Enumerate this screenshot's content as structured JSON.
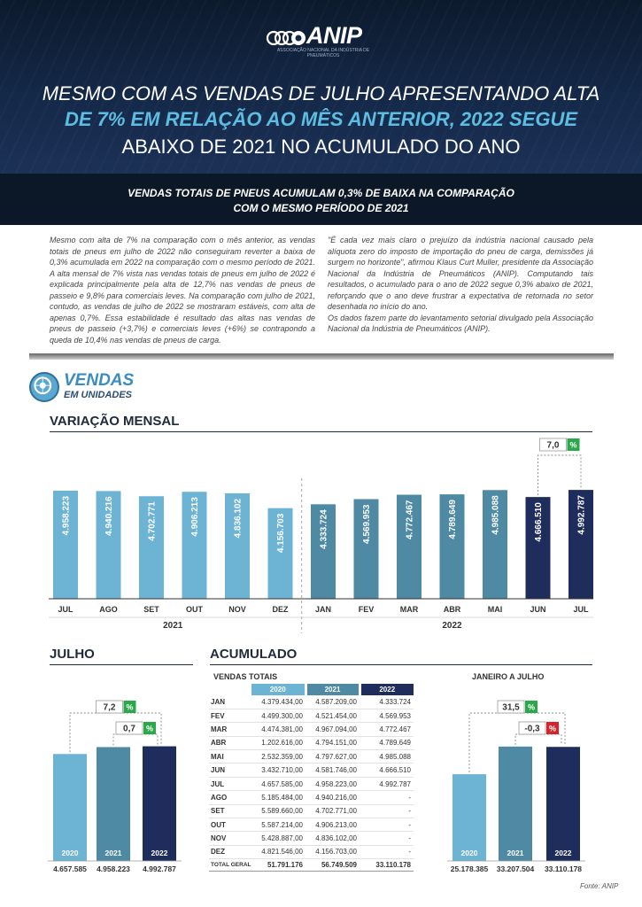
{
  "header": {
    "logo_text": "ANIP",
    "logo_tagline": "ASSOCIAÇÃO NACIONAL DA INDÚSTRIA DE PNEUMÁTICOS",
    "headline_1": "MESMO COM AS VENDAS DE JULHO APRESENTANDO ALTA",
    "headline_2": "DE 7% EM RELAÇÃO AO MÊS ANTERIOR, 2022 SEGUE",
    "headline_3": "ABAIXO DE 2021 NO ACUMULADO DO ANO",
    "subhead_1": "VENDAS TOTAIS DE PNEUS ACUMULAM 0,3% DE BAIXA NA COMPARAÇÃO",
    "subhead_2": "COM O MESMO PERÍODO DE 2021"
  },
  "body": {
    "left_column": "Mesmo com alta de 7% na comparação com o mês anterior, as vendas totais de pneus em julho de 2022 não conseguiram reverter a baixa de 0,3% acumulada em 2022 na comparação com o mesmo período de 2021. A alta mensal de 7% vista nas vendas totais de pneus em julho de 2022 é explicada principalmente pela alta de 12,7% nas vendas de pneus de passeio e 9,8% para comerciais leves. Na comparação com julho de 2021, contudo, as vendas de julho de 2022 se mostraram estáveis, com alta de apenas 0,7%. Essa estabilidade é resultado das altas nas vendas de pneus de passeio (+3,7%) e comerciais leves (+6%) se contrapondo a queda de 10,4% nas vendas de pneus de carga.",
    "right_column_1": "\"É cada vez mais claro o prejuízo da indústria nacional causado pela alíquota zero do imposto de importação do pneu de carga, demissões já surgem no horizonte\", afirmou Klaus Curt Muller, presidente da Associação Nacional da Indústria de Pneumáticos (ANIP). Computando tais resultados, o acumulado para o ano de 2022 segue 0,3% abaixo de 2021, reforçando que o ano deve frustrar a expectativa de retomada no setor desenhada no início do ano.",
    "right_column_2": "Os dados fazem parte do levantamento setorial divulgado pela Associação Nacional da Indústria de Pneumáticos (ANIP)."
  },
  "section": {
    "title": "VENDAS",
    "subtitle": "EM UNIDADES",
    "badge_icon": "tire-icon"
  },
  "colors": {
    "c2020": "#6db3d3",
    "c2021": "#4e8aa3",
    "c2022": "#1f2d5c",
    "positive": "#2aa84a",
    "negative": "#d6242a"
  },
  "chart_data": [
    {
      "type": "bar",
      "title": "VARIAÇÃO MENSAL",
      "categories": [
        "JUL",
        "AGO",
        "SET",
        "OUT",
        "NOV",
        "DEZ",
        "JAN",
        "FEV",
        "MAR",
        "ABR",
        "MAI",
        "JUN",
        "JUL"
      ],
      "values": [
        4958223,
        4940216,
        4702771,
        4906213,
        4836102,
        4156703,
        4333724,
        4569953,
        4772467,
        4789649,
        4985088,
        4666510,
        4992787
      ],
      "value_labels": [
        "4.958.223",
        "4.940.216",
        "4.702.771",
        "4.906.213",
        "4.836.102",
        "4.156.703",
        "4.333.724",
        "4.569.953",
        "4.772.467",
        "4.789.649",
        "4.985.088",
        "4.666.510",
        "4.992.787"
      ],
      "groups": [
        {
          "label": "2021",
          "count": 6
        },
        {
          "label": "2022",
          "count": 7
        }
      ],
      "highlight": {
        "from_index": 11,
        "to_index": 12,
        "label": "7,0",
        "unit": "%"
      },
      "ylim": [
        0,
        5200000
      ]
    },
    {
      "type": "bar",
      "title": "JULHO",
      "categories": [
        "2020",
        "2021",
        "2022"
      ],
      "values": [
        4657585,
        4958223,
        4992787
      ],
      "value_labels": [
        "4.657.585",
        "4.958.223",
        "4.992.787"
      ],
      "comparisons": [
        {
          "from_index": 0,
          "to_index": 2,
          "label": "7,2",
          "unit": "%",
          "sign": "positive"
        },
        {
          "from_index": 1,
          "to_index": 2,
          "label": "0,7",
          "unit": "%",
          "sign": "positive"
        }
      ],
      "ylim": [
        0,
        5400000
      ]
    },
    {
      "type": "table",
      "title": "ACUMULADO",
      "subtitle": "VENDAS TOTAIS",
      "columns": [
        "2020",
        "2021",
        "2022"
      ],
      "rows": [
        {
          "month": "JAN",
          "values": [
            "4.379.434,00",
            "4.587.209,00",
            "4.333.724"
          ]
        },
        {
          "month": "FEV",
          "values": [
            "4.499.300,00",
            "4.521.454,00",
            "4.569.953"
          ]
        },
        {
          "month": "MAR",
          "values": [
            "4.474.381,00",
            "4.967.094,00",
            "4.772.467"
          ]
        },
        {
          "month": "ABR",
          "values": [
            "1.202.616,00",
            "4.794.151,00",
            "4.789.649"
          ]
        },
        {
          "month": "MAI",
          "values": [
            "2.532.359,00",
            "4.797.627,00",
            "4.985.088"
          ]
        },
        {
          "month": "JUN",
          "values": [
            "3.432.710,00",
            "4.581.746,00",
            "4.666.510"
          ]
        },
        {
          "month": "JUL",
          "values": [
            "4.657.585,00",
            "4.958.223,00",
            "4.992.787"
          ]
        },
        {
          "month": "AGO",
          "values": [
            "5.185.484,00",
            "4.940.216,00",
            "-"
          ]
        },
        {
          "month": "SET",
          "values": [
            "5.589.660,00",
            "4.702.771,00",
            "-"
          ]
        },
        {
          "month": "OUT",
          "values": [
            "5.587.214,00",
            "4.906.213,00",
            "-"
          ]
        },
        {
          "month": "NOV",
          "values": [
            "5.428.887,00",
            "4.836.102,00",
            "-"
          ]
        },
        {
          "month": "DEZ",
          "values": [
            "4.821.546,00",
            "4.156.703,00",
            "-"
          ]
        }
      ],
      "total": {
        "label": "TOTAL GERAL",
        "values": [
          "51.791.176",
          "56.749.509",
          "33.110.178"
        ]
      }
    },
    {
      "type": "bar",
      "title": "JANEIRO A JULHO",
      "categories": [
        "2020",
        "2021",
        "2022"
      ],
      "values": [
        25178385,
        33207504,
        33110178
      ],
      "value_labels": [
        "25.178.385",
        "33.207.504",
        "33.110.178"
      ],
      "comparisons": [
        {
          "from_index": 0,
          "to_index": 2,
          "label": "31,5",
          "unit": "%",
          "sign": "positive"
        },
        {
          "from_index": 1,
          "to_index": 2,
          "label": "-0,3",
          "unit": "%",
          "sign": "negative"
        }
      ],
      "ylim": [
        0,
        36000000
      ]
    }
  ],
  "source": "Fonte: ANIP"
}
